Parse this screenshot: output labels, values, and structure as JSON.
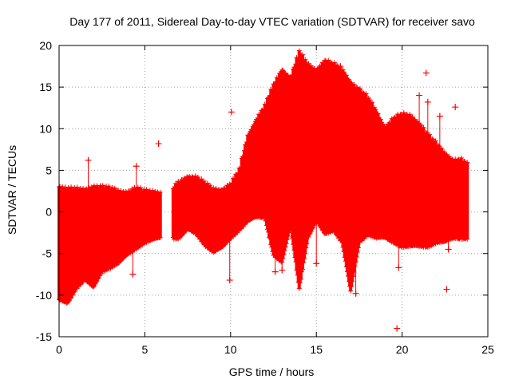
{
  "chart_data": {
    "type": "scatter",
    "title": "Day 177 of 2011, Sidereal Day-to-day VTEC variation (SDTVAR) for receiver savo",
    "xlabel": "GPS time / hours",
    "ylabel": "SDTVAR / TECUs",
    "xlim": [
      0,
      25
    ],
    "ylim": [
      -15,
      20
    ],
    "xticks": [
      0,
      5,
      10,
      15,
      20,
      25
    ],
    "yticks": [
      -15,
      -10,
      -5,
      0,
      5,
      10,
      15,
      20
    ],
    "grid": true,
    "marker": "+",
    "color": "#ff0000",
    "envelope": {
      "x": [
        0.0,
        0.5,
        1.0,
        1.5,
        2.0,
        2.5,
        3.0,
        3.5,
        4.0,
        4.5,
        5.0,
        5.5,
        5.9,
        6.6,
        7.0,
        7.5,
        8.0,
        8.5,
        9.0,
        9.5,
        10.0,
        10.5,
        11.0,
        11.5,
        12.0,
        12.5,
        13.0,
        13.5,
        14.0,
        14.5,
        15.0,
        15.5,
        16.0,
        16.5,
        17.0,
        17.5,
        18.0,
        18.5,
        19.0,
        19.5,
        20.0,
        20.5,
        21.0,
        21.5,
        22.0,
        22.5,
        23.0,
        23.5,
        23.8
      ],
      "upper": [
        3.0,
        2.6,
        2.5,
        2.5,
        3.0,
        2.8,
        2.6,
        2.4,
        2.3,
        2.6,
        2.3,
        2.4,
        2.2,
        2.6,
        3.4,
        4.2,
        4.0,
        3.2,
        2.6,
        2.6,
        3.1,
        4.8,
        9.0,
        11.0,
        12.5,
        15.0,
        17.0,
        16.0,
        19.0,
        17.5,
        17.0,
        18.0,
        17.5,
        17.0,
        15.5,
        14.5,
        13.5,
        12.0,
        10.0,
        11.0,
        11.5,
        11.5,
        10.5,
        9.0,
        8.0,
        7.0,
        6.0,
        6.0,
        5.5
      ],
      "lower": [
        -10.5,
        -10.8,
        -9.0,
        -8.0,
        -9.0,
        -7.0,
        -6.5,
        -6.0,
        -5.0,
        -4.2,
        -3.5,
        -3.2,
        -3.0,
        -3.0,
        -3.0,
        -2.0,
        -2.5,
        -3.8,
        -4.7,
        -4.2,
        -3.0,
        -2.0,
        -1.0,
        -0.5,
        -0.5,
        -5.0,
        -6.0,
        -1.5,
        -9.0,
        -3.0,
        -1.0,
        -2.5,
        -2.0,
        -3.5,
        -9.5,
        -3.5,
        -2.5,
        -3.0,
        -3.0,
        -3.5,
        -4.0,
        -4.0,
        -4.0,
        -4.0,
        -3.5,
        -3.5,
        -3.0,
        -3.0,
        -3.0
      ]
    },
    "gaps": [
      [
        5.9,
        6.6
      ]
    ],
    "outliers": [
      {
        "x": 1.7,
        "y": 6.2
      },
      {
        "x": 4.3,
        "y": -7.5
      },
      {
        "x": 4.5,
        "y": 5.5
      },
      {
        "x": 5.8,
        "y": 8.2
      },
      {
        "x": 9.95,
        "y": -8.2
      },
      {
        "x": 10.05,
        "y": 12.0
      },
      {
        "x": 12.6,
        "y": -7.2
      },
      {
        "x": 13.0,
        "y": -7.0
      },
      {
        "x": 15.0,
        "y": -6.2
      },
      {
        "x": 16.4,
        "y": 17.5
      },
      {
        "x": 17.3,
        "y": -9.8
      },
      {
        "x": 19.7,
        "y": -14.0
      },
      {
        "x": 19.8,
        "y": -6.7
      },
      {
        "x": 21.0,
        "y": 14.0
      },
      {
        "x": 21.4,
        "y": 16.7
      },
      {
        "x": 21.5,
        "y": 13.2
      },
      {
        "x": 22.2,
        "y": 11.5
      },
      {
        "x": 22.6,
        "y": -9.3
      },
      {
        "x": 22.7,
        "y": -4.5
      },
      {
        "x": 23.1,
        "y": 12.6
      }
    ]
  }
}
